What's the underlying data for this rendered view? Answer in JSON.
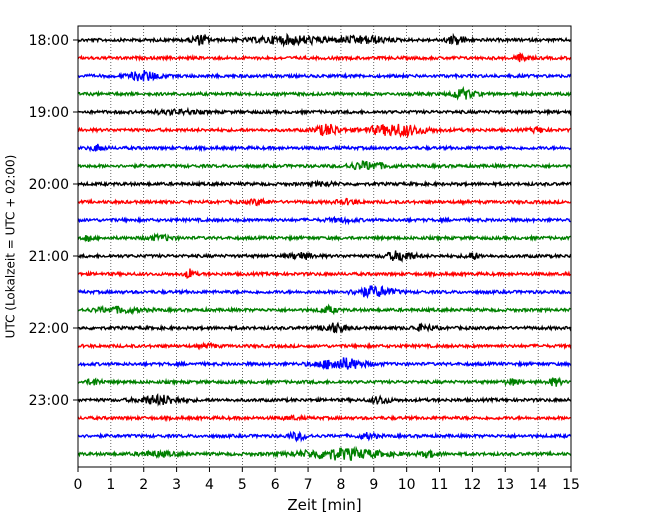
{
  "chart_data": {
    "type": "line",
    "xlabel": "Zeit  [min]",
    "ylabel": "UTC (Lokalzeit = UTC + 02:00)",
    "xlim": [
      0,
      15
    ],
    "xticks": [
      0,
      1,
      2,
      3,
      4,
      5,
      6,
      7,
      8,
      9,
      10,
      11,
      12,
      13,
      14,
      15
    ],
    "yticks": [
      "18:00",
      "19:00",
      "20:00",
      "21:00",
      "22:00",
      "23:00"
    ],
    "grid": "vertical-dotted",
    "trace_colors": [
      "#000000",
      "#ff0000",
      "#0000ff",
      "#008000"
    ],
    "traces": [
      {
        "start": "18:00",
        "bursts": [
          [
            3.7,
            0.4,
            1.0
          ],
          [
            6.5,
            1.5,
            0.9
          ],
          [
            8.7,
            1.0,
            0.8
          ],
          [
            11.5,
            0.4,
            1.0
          ]
        ]
      },
      {
        "start": "18:15",
        "bursts": [
          [
            13.5,
            0.3,
            0.8
          ]
        ]
      },
      {
        "start": "18:30",
        "bursts": [
          [
            2.0,
            0.6,
            1.1
          ]
        ]
      },
      {
        "start": "18:45",
        "bursts": [
          [
            11.7,
            0.5,
            1.1
          ]
        ]
      },
      {
        "start": "19:00",
        "bursts": [
          [
            3.0,
            1.0,
            0.4
          ]
        ]
      },
      {
        "start": "19:15",
        "bursts": [
          [
            7.6,
            0.5,
            1.3
          ],
          [
            9.7,
            1.2,
            1.3
          ],
          [
            14.0,
            0.3,
            0.6
          ]
        ]
      },
      {
        "start": "19:30",
        "bursts": [
          [
            0.6,
            0.3,
            0.7
          ]
        ]
      },
      {
        "start": "19:45",
        "bursts": [
          [
            8.8,
            0.8,
            0.9
          ]
        ]
      },
      {
        "start": "20:00",
        "bursts": [
          [
            7.5,
            0.5,
            0.4
          ]
        ]
      },
      {
        "start": "20:15",
        "bursts": [
          [
            5.5,
            0.4,
            0.6
          ],
          [
            8.2,
            0.5,
            0.5
          ]
        ]
      },
      {
        "start": "20:30",
        "bursts": [
          [
            8.0,
            0.6,
            0.4
          ]
        ]
      },
      {
        "start": "20:45",
        "bursts": [
          [
            0.3,
            0.2,
            0.7
          ],
          [
            2.5,
            0.6,
            0.5
          ]
        ]
      },
      {
        "start": "21:00",
        "bursts": [
          [
            9.8,
            0.6,
            1.1
          ],
          [
            6.8,
            0.5,
            0.7
          ],
          [
            12.0,
            0.3,
            0.7
          ]
        ]
      },
      {
        "start": "21:15",
        "bursts": [
          [
            3.4,
            0.2,
            1.0
          ]
        ]
      },
      {
        "start": "21:30",
        "bursts": [
          [
            9.0,
            0.8,
            1.2
          ]
        ]
      },
      {
        "start": "21:45",
        "bursts": [
          [
            1.2,
            1.0,
            0.6
          ],
          [
            7.6,
            0.4,
            0.7
          ]
        ]
      },
      {
        "start": "22:00",
        "bursts": [
          [
            7.8,
            0.5,
            1.0
          ],
          [
            10.5,
            0.5,
            0.6
          ]
        ]
      },
      {
        "start": "22:15",
        "bursts": [
          [
            4.0,
            0.3,
            0.4
          ]
        ]
      },
      {
        "start": "22:30",
        "bursts": [
          [
            8.0,
            1.0,
            1.3
          ]
        ]
      },
      {
        "start": "22:45",
        "bursts": [
          [
            0.5,
            0.3,
            0.7
          ],
          [
            14.5,
            0.3,
            0.8
          ],
          [
            13.2,
            0.3,
            0.6
          ]
        ]
      },
      {
        "start": "23:00",
        "bursts": [
          [
            2.5,
            0.9,
            1.0
          ],
          [
            9.2,
            0.4,
            0.8
          ]
        ]
      },
      {
        "start": "23:15",
        "bursts": [
          [
            6.5,
            0.4,
            0.3
          ]
        ]
      },
      {
        "start": "23:30",
        "bursts": [
          [
            6.7,
            0.4,
            0.8
          ],
          [
            8.8,
            0.4,
            0.6
          ]
        ]
      },
      {
        "start": "23:45",
        "bursts": [
          [
            8.0,
            1.8,
            1.2
          ],
          [
            10.7,
            0.4,
            0.6
          ],
          [
            2.4,
            0.8,
            0.5
          ]
        ]
      }
    ]
  }
}
